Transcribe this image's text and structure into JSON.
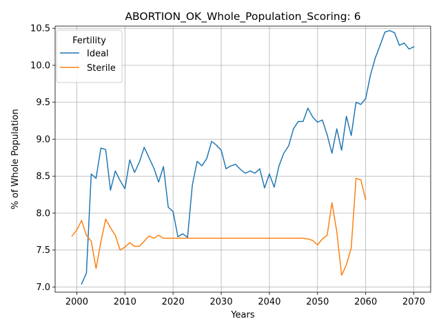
{
  "chart_data": {
    "type": "line",
    "title": "ABORTION_OK_Whole_Population_Scoring: 6",
    "xlabel": "Years",
    "ylabel": "% of Whole Population",
    "xlim": [
      1995.5,
      2073.5
    ],
    "ylim": [
      6.93,
      10.53
    ],
    "xticks": [
      2000,
      2010,
      2020,
      2030,
      2040,
      2050,
      2060,
      2070
    ],
    "yticks": [
      7.0,
      7.5,
      8.0,
      8.5,
      9.0,
      9.5,
      10.0,
      10.5
    ],
    "xtick_labels": [
      "2000",
      "2010",
      "2020",
      "2030",
      "2040",
      "2050",
      "2060",
      "2070"
    ],
    "ytick_labels": [
      "7.0",
      "7.5",
      "8.0",
      "8.5",
      "9.0",
      "9.5",
      "10.0",
      "10.5"
    ],
    "grid": true,
    "legend": {
      "title": "Fertility",
      "placement": "top-left"
    },
    "series": [
      {
        "name": "Ideal",
        "color": "#1f77b4",
        "x": [
          2001,
          2002,
          2003,
          2004,
          2005,
          2006,
          2007,
          2008,
          2009,
          2010,
          2011,
          2012,
          2013,
          2014,
          2015,
          2016,
          2017,
          2018,
          2019,
          2020,
          2021,
          2022,
          2023,
          2024,
          2025,
          2026,
          2027,
          2028,
          2029,
          2030,
          2031,
          2032,
          2033,
          2034,
          2035,
          2036,
          2037,
          2038,
          2039,
          2040,
          2041,
          2042,
          2043,
          2044,
          2045,
          2046,
          2047,
          2048,
          2049,
          2050,
          2051,
          2052,
          2053,
          2054,
          2055,
          2056,
          2057,
          2058,
          2059,
          2060,
          2061,
          2062,
          2063,
          2064,
          2065,
          2066,
          2067,
          2068,
          2069,
          2070
        ],
        "values": [
          7.04,
          7.19,
          8.53,
          8.47,
          8.88,
          8.86,
          8.31,
          8.57,
          8.44,
          8.33,
          8.72,
          8.55,
          8.69,
          8.89,
          8.75,
          8.61,
          8.42,
          8.63,
          8.08,
          8.02,
          7.68,
          7.72,
          7.67,
          8.38,
          8.7,
          8.64,
          8.74,
          8.97,
          8.92,
          8.85,
          8.6,
          8.64,
          8.66,
          8.59,
          8.54,
          8.57,
          8.54,
          8.6,
          8.34,
          8.53,
          8.35,
          8.64,
          8.81,
          8.91,
          9.14,
          9.24,
          9.24,
          9.42,
          9.3,
          9.23,
          9.26,
          9.06,
          8.81,
          9.14,
          8.85,
          9.31,
          9.05,
          9.5,
          9.47,
          9.55,
          9.87,
          10.1,
          10.27,
          10.45,
          10.47,
          10.44,
          10.27,
          10.3,
          10.22,
          10.25
        ]
      },
      {
        "name": "Sterile",
        "color": "#ff7f0e",
        "x": [
          1999,
          2000,
          2001,
          2002,
          2003,
          2004,
          2005,
          2006,
          2007,
          2008,
          2009,
          2010,
          2011,
          2012,
          2013,
          2014,
          2015,
          2016,
          2017,
          2018,
          2019,
          2020,
          2021,
          2022,
          2023,
          2024,
          2025,
          2026,
          2027,
          2028,
          2029,
          2030,
          2031,
          2032,
          2033,
          2034,
          2035,
          2036,
          2037,
          2038,
          2039,
          2040,
          2041,
          2042,
          2043,
          2044,
          2045,
          2046,
          2047,
          2048,
          2049,
          2050,
          2051,
          2052,
          2053,
          2054,
          2055,
          2056,
          2057,
          2058,
          2059,
          2060
        ],
        "values": [
          7.69,
          7.77,
          7.9,
          7.7,
          7.62,
          7.25,
          7.61,
          7.92,
          7.8,
          7.7,
          7.5,
          7.54,
          7.6,
          7.55,
          7.55,
          7.62,
          7.69,
          7.66,
          7.7,
          7.66,
          7.66,
          7.66,
          7.66,
          7.66,
          7.66,
          7.66,
          7.66,
          7.66,
          7.66,
          7.66,
          7.66,
          7.66,
          7.66,
          7.66,
          7.66,
          7.66,
          7.66,
          7.66,
          7.66,
          7.66,
          7.66,
          7.66,
          7.66,
          7.66,
          7.66,
          7.66,
          7.66,
          7.66,
          7.66,
          7.65,
          7.63,
          7.57,
          7.65,
          7.7,
          8.14,
          7.75,
          7.16,
          7.3,
          7.53,
          8.47,
          8.45,
          8.18
        ]
      }
    ]
  }
}
